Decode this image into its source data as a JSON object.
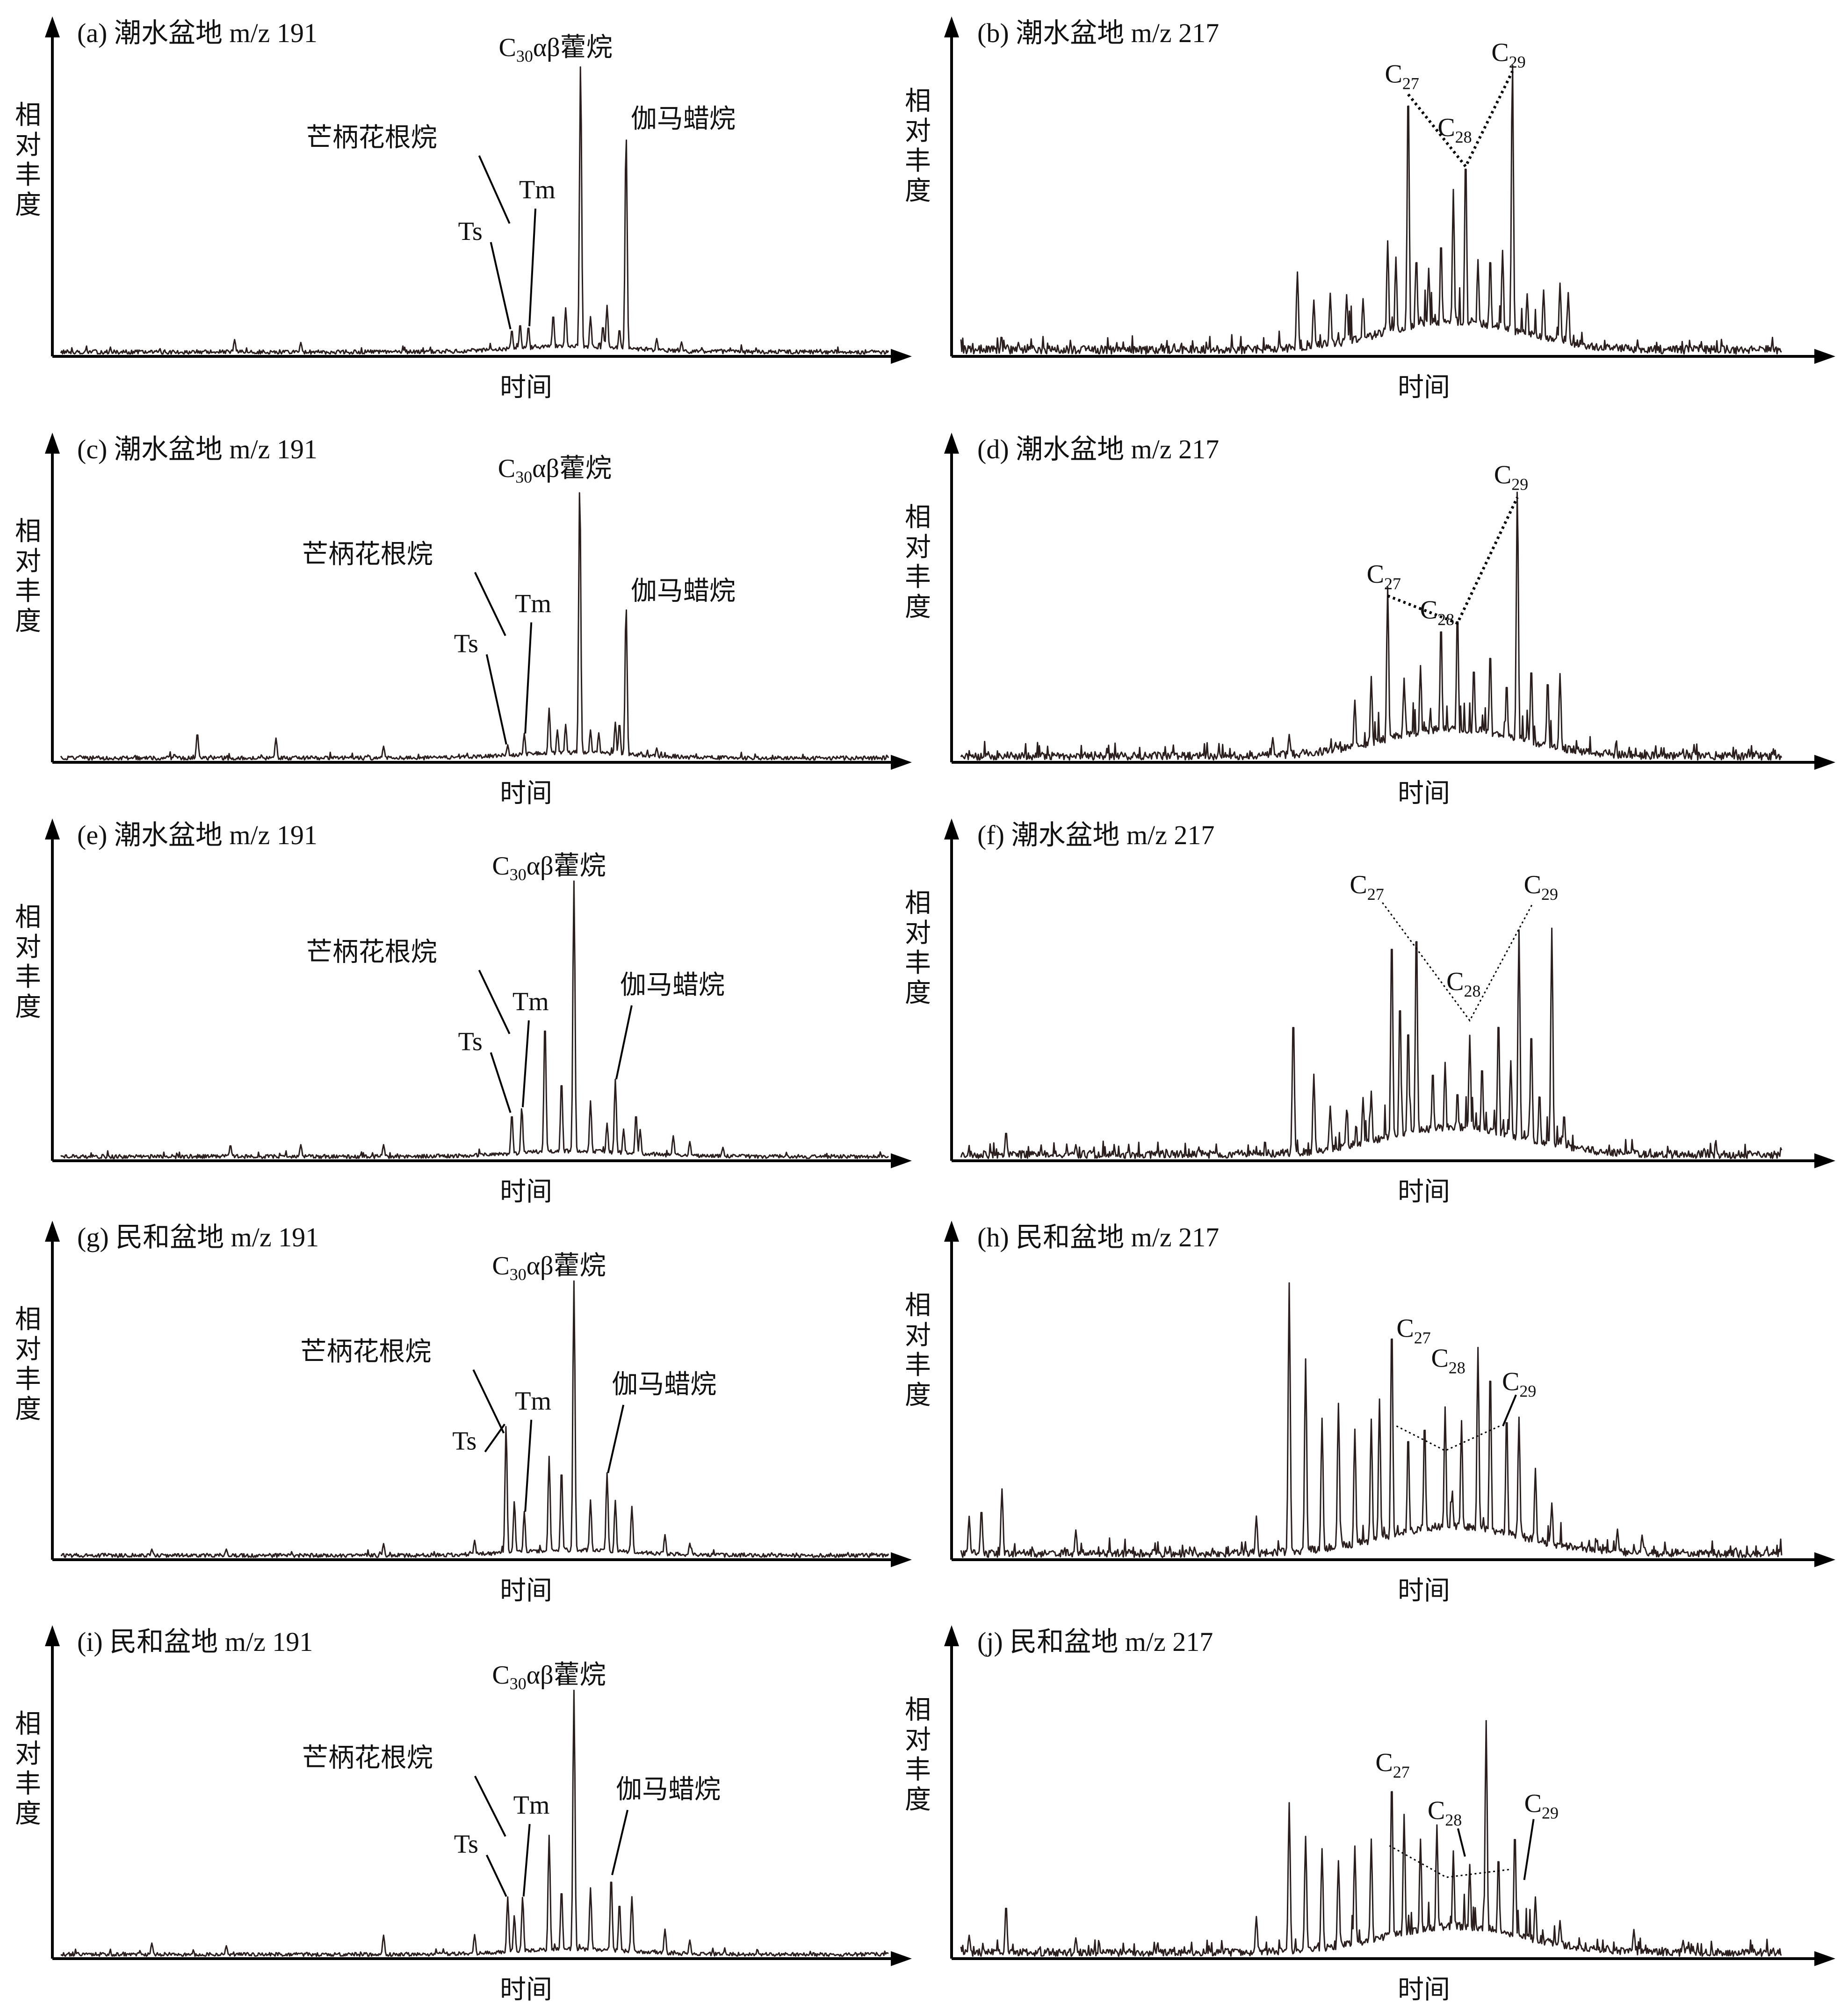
{
  "chart_data": [
    {
      "id": "a",
      "type": "line",
      "ion": "191",
      "title": "(a) 潮水盆地 m/z 191",
      "xlabel": "时间",
      "ylabel": "相对丰度",
      "x_ticks": false,
      "y_ticks": false,
      "peaks": [
        {
          "label": "",
          "t": 0.21,
          "h": 0.05
        },
        {
          "label": "",
          "t": 0.29,
          "h": 0.04
        },
        {
          "label": "Ts",
          "t": 0.545,
          "h": 0.08
        },
        {
          "label": "",
          "t": 0.555,
          "h": 0.1
        },
        {
          "label": "Tm",
          "t": 0.565,
          "h": 0.09
        },
        {
          "label": "",
          "t": 0.595,
          "h": 0.13
        },
        {
          "label": "",
          "t": 0.61,
          "h": 0.15
        },
        {
          "label": "C30αβ藿烷",
          "t": 0.628,
          "h": 1.0
        },
        {
          "label": "",
          "t": 0.64,
          "h": 0.12
        },
        {
          "label": "",
          "t": 0.655,
          "h": 0.09
        },
        {
          "label": "",
          "t": 0.66,
          "h": 0.16
        },
        {
          "label": "",
          "t": 0.675,
          "h": 0.08
        },
        {
          "label": "伽马蜡烷",
          "t": 0.683,
          "h": 0.76
        },
        {
          "label": "",
          "t": 0.72,
          "h": 0.05
        },
        {
          "label": "",
          "t": 0.75,
          "h": 0.04
        }
      ],
      "annotations": [
        "Ts",
        "Tm",
        "芒柄花根烷",
        "C30αβ藿烷",
        "伽马蜡烷"
      ]
    },
    {
      "id": "b",
      "type": "line",
      "ion": "217",
      "title": "(b) 潮水盆地 m/z 217",
      "xlabel": "时间",
      "ylabel": "相对丰度",
      "x_ticks": false,
      "y_ticks": false,
      "peaks": [
        {
          "label": "",
          "t": 0.41,
          "h": 0.28
        },
        {
          "label": "",
          "t": 0.43,
          "h": 0.18
        },
        {
          "label": "",
          "t": 0.45,
          "h": 0.2
        },
        {
          "label": "",
          "t": 0.47,
          "h": 0.19
        },
        {
          "label": "",
          "t": 0.49,
          "h": 0.17
        },
        {
          "label": "",
          "t": 0.52,
          "h": 0.36
        },
        {
          "label": "",
          "t": 0.53,
          "h": 0.3
        },
        {
          "label": "C27",
          "t": 0.545,
          "h": 0.9
        },
        {
          "label": "",
          "t": 0.555,
          "h": 0.3
        },
        {
          "label": "",
          "t": 0.57,
          "h": 0.25
        },
        {
          "label": "",
          "t": 0.585,
          "h": 0.35
        },
        {
          "label": "",
          "t": 0.6,
          "h": 0.52
        },
        {
          "label": "C28",
          "t": 0.615,
          "h": 0.65
        },
        {
          "label": "",
          "t": 0.63,
          "h": 0.28
        },
        {
          "label": "",
          "t": 0.645,
          "h": 0.3
        },
        {
          "label": "",
          "t": 0.66,
          "h": 0.32
        },
        {
          "label": "C29",
          "t": 0.672,
          "h": 0.98
        },
        {
          "label": "",
          "t": 0.69,
          "h": 0.18
        },
        {
          "label": "",
          "t": 0.71,
          "h": 0.2
        },
        {
          "label": "",
          "t": 0.73,
          "h": 0.23
        },
        {
          "label": "",
          "t": 0.74,
          "h": 0.2
        },
        {
          "label": "",
          "t": 0.07,
          "h": 0.04
        }
      ],
      "annotations": [
        "C27",
        "C28",
        "C29"
      ]
    },
    {
      "id": "c",
      "type": "line",
      "ion": "191",
      "title": "(c) 潮水盆地 m/z 191",
      "xlabel": "时间",
      "ylabel": "相对丰度",
      "x_ticks": false,
      "y_ticks": false,
      "peaks": [
        {
          "label": "",
          "t": 0.165,
          "h": 0.1
        },
        {
          "label": "",
          "t": 0.26,
          "h": 0.08
        },
        {
          "label": "",
          "t": 0.39,
          "h": 0.05
        },
        {
          "label": "Ts",
          "t": 0.54,
          "h": 0.05
        },
        {
          "label": "Tm",
          "t": 0.56,
          "h": 0.09
        },
        {
          "label": "",
          "t": 0.59,
          "h": 0.18
        },
        {
          "label": "",
          "t": 0.6,
          "h": 0.1
        },
        {
          "label": "",
          "t": 0.61,
          "h": 0.12
        },
        {
          "label": "C30αβ藿烷",
          "t": 0.627,
          "h": 1.0
        },
        {
          "label": "",
          "t": 0.64,
          "h": 0.1
        },
        {
          "label": "",
          "t": 0.65,
          "h": 0.09
        },
        {
          "label": "",
          "t": 0.67,
          "h": 0.13
        },
        {
          "label": "",
          "t": 0.675,
          "h": 0.13
        },
        {
          "label": "伽马蜡烷",
          "t": 0.683,
          "h": 0.56
        },
        {
          "label": "",
          "t": 0.72,
          "h": 0.04
        }
      ],
      "annotations": [
        "Ts",
        "Tm",
        "芒柄花根烷",
        "C30αβ藿烷",
        "伽马蜡烷"
      ]
    },
    {
      "id": "d",
      "type": "line",
      "ion": "217",
      "title": "(d) 潮水盆地 m/z 217",
      "xlabel": "时间",
      "ylabel": "相对丰度",
      "x_ticks": false,
      "y_ticks": false,
      "peaks": [
        {
          "label": "",
          "t": 0.38,
          "h": 0.08
        },
        {
          "label": "",
          "t": 0.4,
          "h": 0.09
        },
        {
          "label": "",
          "t": 0.48,
          "h": 0.2
        },
        {
          "label": "",
          "t": 0.5,
          "h": 0.28
        },
        {
          "label": "C27",
          "t": 0.52,
          "h": 0.6
        },
        {
          "label": "",
          "t": 0.54,
          "h": 0.26
        },
        {
          "label": "",
          "t": 0.56,
          "h": 0.3
        },
        {
          "label": "",
          "t": 0.585,
          "h": 0.46
        },
        {
          "label": "C28",
          "t": 0.605,
          "h": 0.5
        },
        {
          "label": "",
          "t": 0.625,
          "h": 0.3
        },
        {
          "label": "",
          "t": 0.645,
          "h": 0.36
        },
        {
          "label": "",
          "t": 0.665,
          "h": 0.25
        },
        {
          "label": "C29",
          "t": 0.678,
          "h": 0.96
        },
        {
          "label": "",
          "t": 0.695,
          "h": 0.32
        },
        {
          "label": "",
          "t": 0.715,
          "h": 0.28
        },
        {
          "label": "",
          "t": 0.73,
          "h": 0.3
        }
      ],
      "annotations": [
        "C27",
        "C28",
        "C29"
      ]
    },
    {
      "id": "e",
      "type": "line",
      "ion": "191",
      "title": "(e) 潮水盆地 m/z 191",
      "xlabel": "时间",
      "ylabel": "相对丰度",
      "x_ticks": false,
      "y_ticks": false,
      "peaks": [
        {
          "label": "",
          "t": 0.205,
          "h": 0.05
        },
        {
          "label": "",
          "t": 0.29,
          "h": 0.05
        },
        {
          "label": "",
          "t": 0.39,
          "h": 0.05
        },
        {
          "label": "Ts",
          "t": 0.545,
          "h": 0.16
        },
        {
          "label": "Tm",
          "t": 0.557,
          "h": 0.18
        },
        {
          "label": "",
          "t": 0.585,
          "h": 0.5
        },
        {
          "label": "",
          "t": 0.605,
          "h": 0.28
        },
        {
          "label": "C30αβ藿烷",
          "t": 0.62,
          "h": 1.0
        },
        {
          "label": "",
          "t": 0.64,
          "h": 0.2
        },
        {
          "label": "",
          "t": 0.66,
          "h": 0.12
        },
        {
          "label": "伽马蜡烷",
          "t": 0.67,
          "h": 0.28
        },
        {
          "label": "",
          "t": 0.68,
          "h": 0.1
        },
        {
          "label": "",
          "t": 0.695,
          "h": 0.16
        },
        {
          "label": "",
          "t": 0.7,
          "h": 0.1
        },
        {
          "label": "",
          "t": 0.74,
          "h": 0.08
        },
        {
          "label": "",
          "t": 0.76,
          "h": 0.06
        },
        {
          "label": "",
          "t": 0.8,
          "h": 0.04
        }
      ],
      "annotations": [
        "Ts",
        "Tm",
        "芒柄花根烷",
        "C30αβ藿烷",
        "伽马蜡烷"
      ]
    },
    {
      "id": "f",
      "type": "line",
      "ion": "217",
      "title": "(f) 潮水盆地 m/z 217",
      "xlabel": "时间",
      "ylabel": "相对丰度",
      "x_ticks": false,
      "y_ticks": false,
      "peaks": [
        {
          "label": "",
          "t": 0.055,
          "h": 0.1
        },
        {
          "label": "",
          "t": 0.14,
          "h": 0.05
        },
        {
          "label": "",
          "t": 0.405,
          "h": 0.52
        },
        {
          "label": "",
          "t": 0.43,
          "h": 0.3
        },
        {
          "label": "",
          "t": 0.45,
          "h": 0.18
        },
        {
          "label": "",
          "t": 0.47,
          "h": 0.16
        },
        {
          "label": "",
          "t": 0.49,
          "h": 0.2
        },
        {
          "label": "",
          "t": 0.5,
          "h": 0.22
        },
        {
          "label": "C27",
          "t": 0.525,
          "h": 0.8
        },
        {
          "label": "",
          "t": 0.535,
          "h": 0.55
        },
        {
          "label": "",
          "t": 0.545,
          "h": 0.45
        },
        {
          "label": "",
          "t": 0.555,
          "h": 0.82
        },
        {
          "label": "",
          "t": 0.575,
          "h": 0.28
        },
        {
          "label": "",
          "t": 0.59,
          "h": 0.3
        },
        {
          "label": "",
          "t": 0.605,
          "h": 0.2
        },
        {
          "label": "C28",
          "t": 0.62,
          "h": 0.4
        },
        {
          "label": "",
          "t": 0.635,
          "h": 0.3
        },
        {
          "label": "",
          "t": 0.655,
          "h": 0.48
        },
        {
          "label": "",
          "t": 0.67,
          "h": 0.32
        },
        {
          "label": "",
          "t": 0.68,
          "h": 0.8
        },
        {
          "label": "",
          "t": 0.695,
          "h": 0.45
        },
        {
          "label": "",
          "t": 0.705,
          "h": 0.22
        },
        {
          "label": "C29",
          "t": 0.72,
          "h": 0.82
        },
        {
          "label": "",
          "t": 0.735,
          "h": 0.15
        }
      ],
      "annotations": [
        "C27",
        "C28",
        "C29"
      ]
    },
    {
      "id": "g",
      "type": "line",
      "ion": "191",
      "title": "(g) 民和盆地 m/z 191",
      "xlabel": "时间",
      "ylabel": "相对丰度",
      "x_ticks": false,
      "y_ticks": false,
      "peaks": [
        {
          "label": "",
          "t": 0.11,
          "h": 0.03
        },
        {
          "label": "",
          "t": 0.2,
          "h": 0.03
        },
        {
          "label": "",
          "t": 0.39,
          "h": 0.05
        },
        {
          "label": "",
          "t": 0.5,
          "h": 0.06
        },
        {
          "label": "Ts",
          "t": 0.538,
          "h": 0.48
        },
        {
          "label": "",
          "t": 0.548,
          "h": 0.2
        },
        {
          "label": "Tm",
          "t": 0.56,
          "h": 0.16
        },
        {
          "label": "",
          "t": 0.59,
          "h": 0.36
        },
        {
          "label": "",
          "t": 0.605,
          "h": 0.32
        },
        {
          "label": "C30αβ藿烷",
          "t": 0.62,
          "h": 1.0
        },
        {
          "label": "",
          "t": 0.64,
          "h": 0.2
        },
        {
          "label": "伽马蜡烷",
          "t": 0.66,
          "h": 0.3
        },
        {
          "label": "",
          "t": 0.67,
          "h": 0.2
        },
        {
          "label": "",
          "t": 0.69,
          "h": 0.18
        },
        {
          "label": "",
          "t": 0.73,
          "h": 0.08
        },
        {
          "label": "",
          "t": 0.76,
          "h": 0.05
        }
      ],
      "annotations": [
        "Ts",
        "Tm",
        "芒柄花根烷",
        "C30αβ藿烷",
        "伽马蜡烷"
      ]
    },
    {
      "id": "h",
      "type": "line",
      "ion": "217",
      "title": "(h) 民和盆地 m/z 217",
      "xlabel": "时间",
      "ylabel": "相对丰度",
      "x_ticks": false,
      "y_ticks": false,
      "peaks": [
        {
          "label": "",
          "t": 0.01,
          "h": 0.15
        },
        {
          "label": "",
          "t": 0.025,
          "h": 0.18
        },
        {
          "label": "",
          "t": 0.05,
          "h": 0.25
        },
        {
          "label": "",
          "t": 0.14,
          "h": 0.1
        },
        {
          "label": "",
          "t": 0.36,
          "h": 0.15
        },
        {
          "label": "",
          "t": 0.4,
          "h": 1.0
        },
        {
          "label": "",
          "t": 0.42,
          "h": 0.72
        },
        {
          "label": "",
          "t": 0.44,
          "h": 0.5
        },
        {
          "label": "",
          "t": 0.46,
          "h": 0.55
        },
        {
          "label": "",
          "t": 0.48,
          "h": 0.45
        },
        {
          "label": "",
          "t": 0.5,
          "h": 0.48
        },
        {
          "label": "",
          "t": 0.51,
          "h": 0.55
        },
        {
          "label": "C27",
          "t": 0.525,
          "h": 0.84
        },
        {
          "label": "",
          "t": 0.545,
          "h": 0.42
        },
        {
          "label": "",
          "t": 0.565,
          "h": 0.46
        },
        {
          "label": "C28",
          "t": 0.59,
          "h": 0.5
        },
        {
          "label": "",
          "t": 0.61,
          "h": 0.45
        },
        {
          "label": "",
          "t": 0.63,
          "h": 0.72
        },
        {
          "label": "",
          "t": 0.645,
          "h": 0.66
        },
        {
          "label": "C29",
          "t": 0.665,
          "h": 0.5
        },
        {
          "label": "",
          "t": 0.68,
          "h": 0.48
        },
        {
          "label": "",
          "t": 0.7,
          "h": 0.3
        },
        {
          "label": "",
          "t": 0.72,
          "h": 0.18
        },
        {
          "label": "",
          "t": 0.8,
          "h": 0.1
        },
        {
          "label": "",
          "t": 0.83,
          "h": 0.08
        }
      ],
      "annotations": [
        "C27",
        "C28",
        "C29"
      ]
    },
    {
      "id": "i",
      "type": "line",
      "ion": "191",
      "title": "(i) 民和盆地 m/z 191",
      "xlabel": "时间",
      "ylabel": "相对丰度",
      "x_ticks": false,
      "y_ticks": false,
      "peaks": [
        {
          "label": "",
          "t": 0.11,
          "h": 0.05
        },
        {
          "label": "",
          "t": 0.2,
          "h": 0.04
        },
        {
          "label": "",
          "t": 0.39,
          "h": 0.08
        },
        {
          "label": "",
          "t": 0.5,
          "h": 0.08
        },
        {
          "label": "Ts",
          "t": 0.54,
          "h": 0.22
        },
        {
          "label": "",
          "t": 0.548,
          "h": 0.15
        },
        {
          "label": "Tm",
          "t": 0.558,
          "h": 0.22
        },
        {
          "label": "",
          "t": 0.59,
          "h": 0.45
        },
        {
          "label": "",
          "t": 0.605,
          "h": 0.25
        },
        {
          "label": "C30αβ藿烷",
          "t": 0.62,
          "h": 1.0
        },
        {
          "label": "",
          "t": 0.64,
          "h": 0.25
        },
        {
          "label": "伽马蜡烷",
          "t": 0.665,
          "h": 0.3
        },
        {
          "label": "",
          "t": 0.675,
          "h": 0.2
        },
        {
          "label": "",
          "t": 0.69,
          "h": 0.22
        },
        {
          "label": "",
          "t": 0.73,
          "h": 0.1
        },
        {
          "label": "",
          "t": 0.76,
          "h": 0.06
        }
      ],
      "annotations": [
        "Ts",
        "Tm",
        "芒柄花根烷",
        "C30αβ藿烷",
        "伽马蜡烷"
      ]
    },
    {
      "id": "j",
      "type": "line",
      "ion": "217",
      "title": "(j) 民和盆地 m/z 217",
      "xlabel": "时间",
      "ylabel": "相对丰度",
      "x_ticks": false,
      "y_ticks": false,
      "peaks": [
        {
          "label": "",
          "t": 0.01,
          "h": 0.08
        },
        {
          "label": "",
          "t": 0.055,
          "h": 0.2
        },
        {
          "label": "",
          "t": 0.14,
          "h": 0.07
        },
        {
          "label": "",
          "t": 0.36,
          "h": 0.15
        },
        {
          "label": "",
          "t": 0.4,
          "h": 0.58
        },
        {
          "label": "",
          "t": 0.42,
          "h": 0.45
        },
        {
          "label": "",
          "t": 0.44,
          "h": 0.4
        },
        {
          "label": "",
          "t": 0.46,
          "h": 0.35
        },
        {
          "label": "",
          "t": 0.48,
          "h": 0.4
        },
        {
          "label": "",
          "t": 0.5,
          "h": 0.42
        },
        {
          "label": "C27",
          "t": 0.525,
          "h": 0.65
        },
        {
          "label": "",
          "t": 0.54,
          "h": 0.5
        },
        {
          "label": "",
          "t": 0.56,
          "h": 0.4
        },
        {
          "label": "C28",
          "t": 0.58,
          "h": 0.45
        },
        {
          "label": "",
          "t": 0.6,
          "h": 0.35
        },
        {
          "label": "",
          "t": 0.62,
          "h": 0.3
        },
        {
          "label": "",
          "t": 0.64,
          "h": 0.85
        },
        {
          "label": "",
          "t": 0.655,
          "h": 0.35
        },
        {
          "label": "C29",
          "t": 0.675,
          "h": 0.45
        },
        {
          "label": "",
          "t": 0.7,
          "h": 0.2
        },
        {
          "label": "",
          "t": 0.73,
          "h": 0.12
        },
        {
          "label": "",
          "t": 0.82,
          "h": 0.1
        },
        {
          "label": "",
          "t": 0.88,
          "h": 0.06
        }
      ],
      "annotations": [
        "C27",
        "C28",
        "C29"
      ]
    }
  ]
}
